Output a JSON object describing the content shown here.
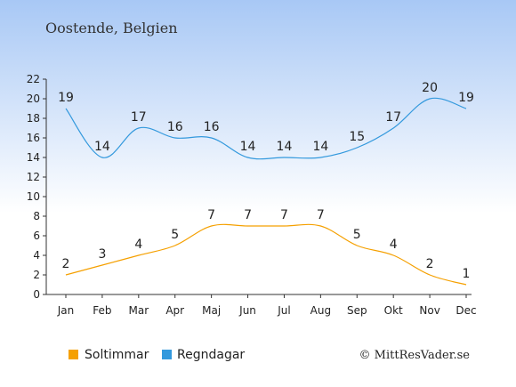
{
  "chart_data": {
    "type": "line",
    "title": "Oostende, Belgien",
    "categories": [
      "Jan",
      "Feb",
      "Mar",
      "Apr",
      "Maj",
      "Jun",
      "Jul",
      "Aug",
      "Sep",
      "Okt",
      "Nov",
      "Dec"
    ],
    "ylim": [
      0,
      22
    ],
    "yticks": [
      0,
      2,
      4,
      6,
      8,
      10,
      12,
      14,
      16,
      18,
      20,
      22
    ],
    "grid": false,
    "legend_position": "bottom-left",
    "series": [
      {
        "name": "Soltimmar",
        "color": "#f5a000",
        "values": [
          2,
          3,
          4,
          5,
          7,
          7,
          7,
          7,
          5,
          4,
          2,
          1
        ]
      },
      {
        "name": "Regndagar",
        "color": "#3399dd",
        "values": [
          19,
          14,
          17,
          16,
          16,
          14,
          14,
          14,
          15,
          17,
          20,
          19
        ]
      }
    ],
    "credit": "© MittResVader.se"
  }
}
